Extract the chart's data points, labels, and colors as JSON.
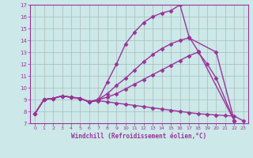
{
  "background_color": "#cce8e8",
  "line_color": "#993399",
  "grid_color": "#aabbbb",
  "xlabel": "Windchill (Refroidissement éolien,°C)",
  "xlim": [
    -0.5,
    23.5
  ],
  "ylim": [
    7,
    17
  ],
  "yticks": [
    7,
    8,
    9,
    10,
    11,
    12,
    13,
    14,
    15,
    16,
    17
  ],
  "xticks": [
    0,
    1,
    2,
    3,
    4,
    5,
    6,
    7,
    8,
    9,
    10,
    11,
    12,
    13,
    14,
    15,
    16,
    17,
    18,
    19,
    20,
    21,
    22,
    23
  ],
  "lines": [
    {
      "x": [
        0,
        1,
        2,
        3,
        4,
        5,
        6,
        7,
        8,
        9,
        10,
        11,
        12,
        13,
        14,
        15,
        16,
        17,
        18,
        22
      ],
      "y": [
        7.8,
        9.0,
        9.1,
        9.3,
        9.2,
        9.1,
        8.8,
        9.0,
        10.5,
        12.0,
        13.7,
        14.7,
        15.5,
        16.0,
        16.3,
        16.5,
        17.0,
        14.3,
        13.1,
        7.2
      ]
    },
    {
      "x": [
        0,
        1,
        2,
        3,
        4,
        5,
        6,
        7,
        8,
        9,
        10,
        11,
        12,
        13,
        14,
        15,
        16,
        17,
        20,
        22
      ],
      "y": [
        7.8,
        9.0,
        9.1,
        9.3,
        9.2,
        9.1,
        8.8,
        9.0,
        9.5,
        10.2,
        10.8,
        11.5,
        12.2,
        12.8,
        13.3,
        13.7,
        14.0,
        14.2,
        13.0,
        7.2
      ]
    },
    {
      "x": [
        0,
        1,
        2,
        3,
        4,
        5,
        6,
        7,
        8,
        9,
        10,
        11,
        12,
        13,
        14,
        15,
        16,
        17,
        18,
        19,
        20,
        22
      ],
      "y": [
        7.8,
        9.0,
        9.1,
        9.3,
        9.2,
        9.1,
        8.8,
        9.0,
        9.2,
        9.5,
        9.9,
        10.3,
        10.7,
        11.1,
        11.5,
        11.9,
        12.3,
        12.7,
        13.0,
        12.0,
        10.8,
        7.2
      ]
    },
    {
      "x": [
        0,
        1,
        2,
        3,
        4,
        5,
        6,
        7,
        8,
        9,
        10,
        11,
        12,
        13,
        14,
        15,
        16,
        17,
        18,
        19,
        20,
        21,
        22,
        23
      ],
      "y": [
        7.8,
        9.0,
        9.1,
        9.3,
        9.2,
        9.1,
        8.8,
        8.9,
        8.8,
        8.7,
        8.6,
        8.5,
        8.4,
        8.3,
        8.2,
        8.1,
        8.0,
        7.9,
        7.8,
        7.75,
        7.7,
        7.65,
        7.6,
        7.2
      ]
    }
  ]
}
